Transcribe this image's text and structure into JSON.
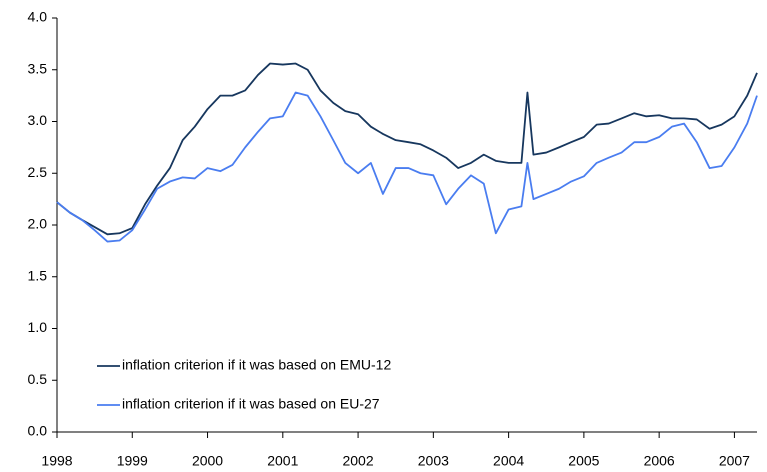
{
  "chart_data": {
    "type": "line",
    "x": [
      1998.0,
      1998.17,
      1998.33,
      1998.5,
      1998.67,
      1998.83,
      1999.0,
      1999.17,
      1999.33,
      1999.5,
      1999.67,
      1999.83,
      2000.0,
      2000.17,
      2000.33,
      2000.5,
      2000.67,
      2000.83,
      2001.0,
      2001.17,
      2001.33,
      2001.5,
      2001.67,
      2001.83,
      2002.0,
      2002.17,
      2002.33,
      2002.5,
      2002.67,
      2002.83,
      2003.0,
      2003.17,
      2003.33,
      2003.5,
      2003.67,
      2003.83,
      2004.0,
      2004.17,
      2004.25,
      2004.33,
      2004.5,
      2004.67,
      2004.83,
      2005.0,
      2005.17,
      2005.33,
      2005.5,
      2005.67,
      2005.83,
      2006.0,
      2006.17,
      2006.33,
      2006.5,
      2006.67,
      2006.83,
      2007.0,
      2007.17,
      2007.3
    ],
    "series": [
      {
        "name": "inflation criterion if it was based on EMU-12",
        "color": "#17375e",
        "values": [
          2.22,
          2.12,
          2.05,
          1.98,
          1.91,
          1.92,
          1.97,
          2.2,
          2.38,
          2.55,
          2.82,
          2.95,
          3.12,
          3.25,
          3.25,
          3.3,
          3.45,
          3.56,
          3.55,
          3.56,
          3.5,
          3.3,
          3.18,
          3.1,
          3.07,
          2.95,
          2.88,
          2.82,
          2.8,
          2.78,
          2.72,
          2.65,
          2.55,
          2.6,
          2.68,
          2.62,
          2.6,
          2.6,
          3.28,
          2.68,
          2.7,
          2.75,
          2.8,
          2.85,
          2.97,
          2.98,
          3.03,
          3.08,
          3.05,
          3.06,
          3.03,
          3.03,
          3.02,
          2.93,
          2.97,
          3.05,
          3.25,
          3.47
        ]
      },
      {
        "name": "inflation criterion if it was based on EU-27",
        "color": "#4a7df0",
        "values": [
          2.22,
          2.12,
          2.05,
          1.95,
          1.84,
          1.85,
          1.95,
          2.15,
          2.35,
          2.42,
          2.46,
          2.45,
          2.55,
          2.52,
          2.58,
          2.75,
          2.9,
          3.03,
          3.05,
          3.28,
          3.25,
          3.05,
          2.82,
          2.6,
          2.5,
          2.6,
          2.3,
          2.55,
          2.55,
          2.5,
          2.48,
          2.2,
          2.35,
          2.48,
          2.4,
          1.92,
          2.15,
          2.18,
          2.6,
          2.25,
          2.3,
          2.35,
          2.42,
          2.47,
          2.6,
          2.65,
          2.7,
          2.8,
          2.8,
          2.85,
          2.95,
          2.98,
          2.8,
          2.55,
          2.57,
          2.75,
          2.98,
          3.25
        ]
      }
    ],
    "xlim": [
      1998,
      2007.3
    ],
    "xticks": [
      1998,
      1999,
      2000,
      2001,
      2002,
      2003,
      2004,
      2005,
      2006,
      2007
    ],
    "ylim": [
      0,
      4
    ],
    "yticks": [
      {
        "value": 0,
        "label": "0.0"
      },
      {
        "value": 0.5,
        "label": "0.5"
      },
      {
        "value": 1,
        "label": "1.0"
      },
      {
        "value": 1.5,
        "label": "1.5"
      },
      {
        "value": 2,
        "label": "2.0"
      },
      {
        "value": 2.5,
        "label": "2.5"
      },
      {
        "value": 3,
        "label": "3.0"
      },
      {
        "value": 3.5,
        "label": "3.5"
      },
      {
        "value": 4,
        "label": "4.0"
      }
    ],
    "grid": false,
    "legend": "lower left"
  }
}
